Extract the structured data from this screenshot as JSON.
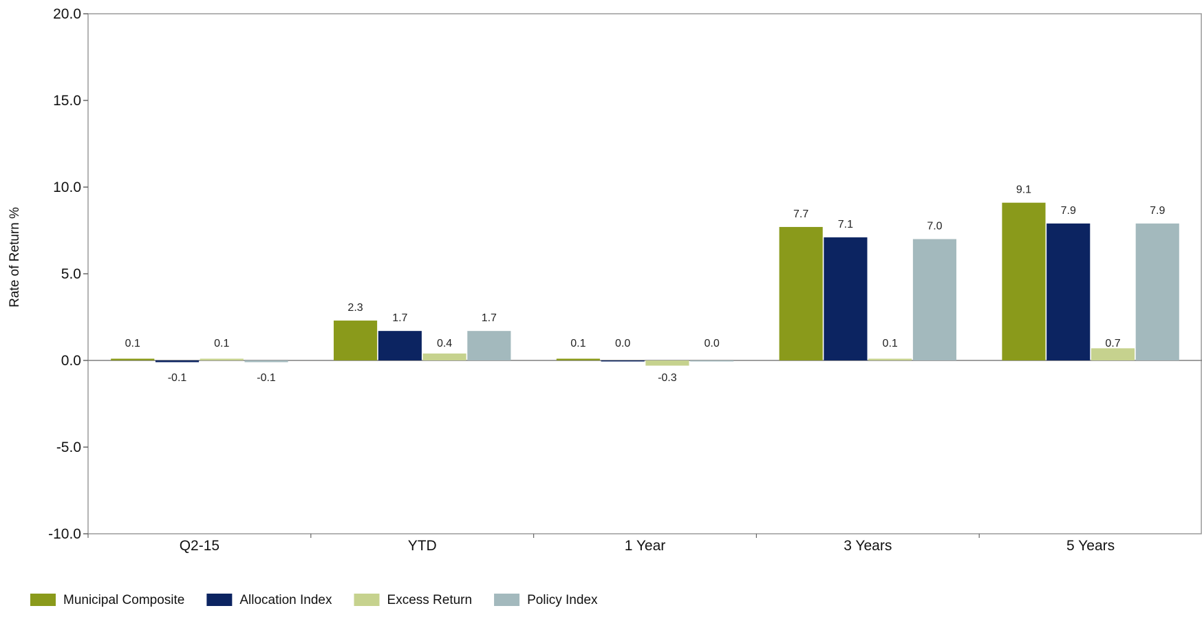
{
  "chart_data": {
    "type": "bar",
    "title": "",
    "xlabel": "",
    "ylabel": "Rate of Return %",
    "ylim": [
      -10,
      20
    ],
    "yticks": [
      -10,
      -5,
      0,
      5,
      10,
      15,
      20
    ],
    "ytick_labels": [
      "-10.0",
      "-5.0",
      "0.0",
      "5.0",
      "10.0",
      "15.0",
      "20.0"
    ],
    "grid": false,
    "legend_position": "bottom-left",
    "categories": [
      "Q2-15",
      "YTD",
      "1 Year",
      "3 Years",
      "5 Years"
    ],
    "series": [
      {
        "name": "Municipal Composite",
        "color": "#8a9a1b",
        "values": [
          0.1,
          2.3,
          0.1,
          7.7,
          9.1
        ],
        "labels": [
          "0.1",
          "2.3",
          "0.1",
          "7.7",
          "9.1"
        ]
      },
      {
        "name": "Allocation Index",
        "color": "#0c2461",
        "values": [
          -0.1,
          1.7,
          0.0,
          7.1,
          7.9
        ],
        "labels": [
          "-0.1",
          "1.7",
          "0.0",
          "7.1",
          "7.9"
        ]
      },
      {
        "name": "Excess Return",
        "color": "#c6d28e",
        "values": [
          0.1,
          0.4,
          -0.3,
          0.1,
          0.7
        ],
        "labels": [
          "0.1",
          "0.4",
          "-0.3",
          "0.1",
          "0.7"
        ]
      },
      {
        "name": "Policy Index",
        "color": "#a3b9bd",
        "values": [
          -0.1,
          1.7,
          0.0,
          7.0,
          7.9
        ],
        "labels": [
          "-0.1",
          "1.7",
          "0.0",
          "7.0",
          "7.9"
        ]
      }
    ]
  }
}
